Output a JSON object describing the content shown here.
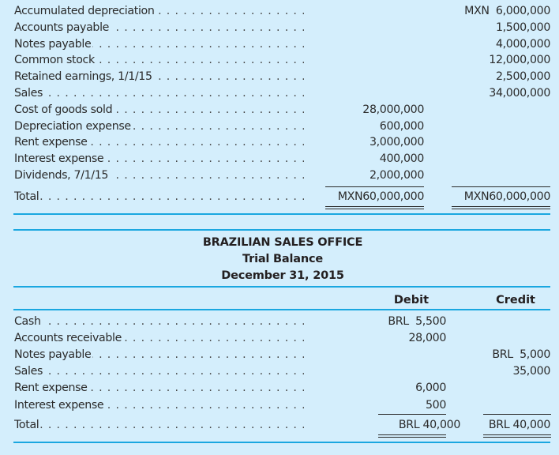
{
  "mexican_section": {
    "rows": [
      {
        "label": "Accumulated depreciation",
        "debit": "",
        "credit": "MXN  6,000,000"
      },
      {
        "label": "Accounts payable",
        "debit": "",
        "credit": "1,500,000"
      },
      {
        "label": "Notes payable",
        "debit": "",
        "credit": "4,000,000"
      },
      {
        "label": "Common stock",
        "debit": "",
        "credit": "12,000,000"
      },
      {
        "label": "Retained earnings, 1/1/15",
        "debit": "",
        "credit": "2,500,000"
      },
      {
        "label": "Sales",
        "debit": "",
        "credit": "34,000,000"
      },
      {
        "label": "Cost of goods sold",
        "debit": "28,000,000",
        "credit": ""
      },
      {
        "label": "Depreciation expense",
        "debit": "600,000",
        "credit": ""
      },
      {
        "label": "Rent expense",
        "debit": "3,000,000",
        "credit": ""
      },
      {
        "label": "Interest expense",
        "debit": "400,000",
        "credit": ""
      },
      {
        "label": "Dividends, 7/1/15",
        "debit": "2,000,000",
        "credit": ""
      }
    ],
    "total": {
      "label": "Total",
      "debit": "MXN60,000,000",
      "credit": "MXN60,000,000"
    }
  },
  "brazilian_section": {
    "title": "BRAZILIAN SALES OFFICE",
    "subtitle": "Trial Balance",
    "date": "December 31, 2015",
    "columns": {
      "debit": "Debit",
      "credit": "Credit"
    },
    "rows": [
      {
        "label": "Cash",
        "debit": "BRL  5,500",
        "credit": ""
      },
      {
        "label": "Accounts receivable",
        "debit": "28,000",
        "credit": ""
      },
      {
        "label": "Notes payable",
        "debit": "",
        "credit": "BRL  5,000"
      },
      {
        "label": "Sales",
        "debit": "",
        "credit": "35,000"
      },
      {
        "label": "Rent expense",
        "debit": "6,000",
        "credit": ""
      },
      {
        "label": "Interest expense",
        "debit": "500",
        "credit": ""
      }
    ],
    "total": {
      "label": "Total",
      "debit": "BRL 40,000",
      "credit": "BRL 40,000"
    }
  },
  "colors": {
    "background": "#D4EEFC",
    "rule": "#1AA7E0",
    "text": "#2b2b2b"
  }
}
